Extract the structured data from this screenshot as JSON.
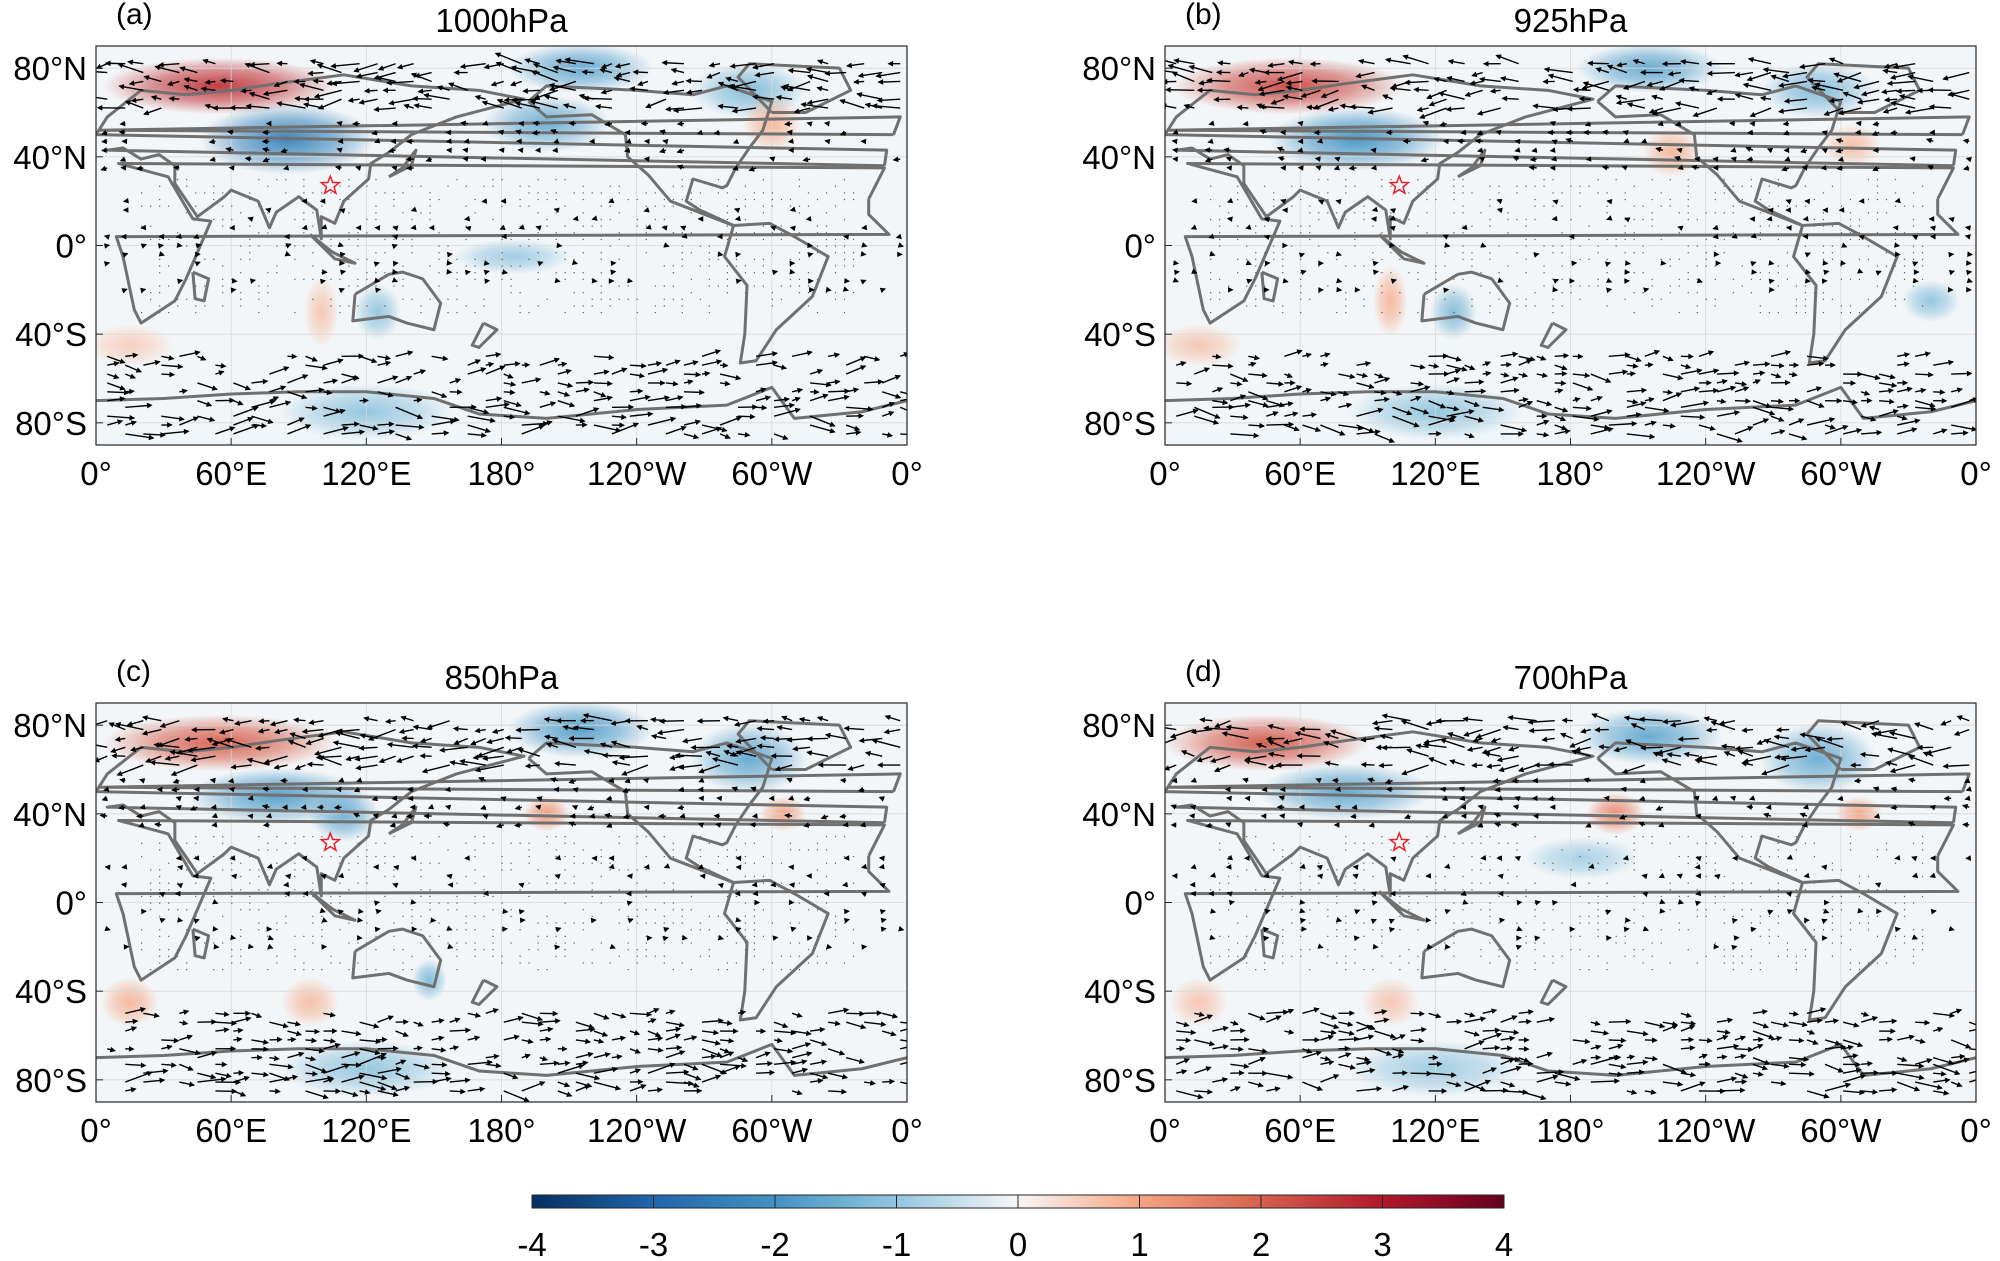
{
  "chart_data": {
    "type": "heatmap",
    "panels": [
      {
        "label": "(a)",
        "title": "1000hPa",
        "features": [
          {
            "lon": 55,
            "lat": 72,
            "value": 2.6,
            "rx": 40,
            "ry": 8
          },
          {
            "lon": 85,
            "lat": 48,
            "value": -2.4,
            "rx": 30,
            "ry": 10
          },
          {
            "lon": 215,
            "lat": 80,
            "value": -1.6,
            "rx": 25,
            "ry": 7
          },
          {
            "lon": 200,
            "lat": 55,
            "value": -1.5,
            "rx": 22,
            "ry": 8
          },
          {
            "lon": 290,
            "lat": 70,
            "value": -1.2,
            "rx": 20,
            "ry": 8
          },
          {
            "lon": 300,
            "lat": 55,
            "value": 0.8,
            "rx": 10,
            "ry": 8
          },
          {
            "lon": 185,
            "lat": -5,
            "value": -0.9,
            "rx": 20,
            "ry": 5
          },
          {
            "lon": 100,
            "lat": -30,
            "value": 0.6,
            "rx": 6,
            "ry": 10
          },
          {
            "lon": 125,
            "lat": -30,
            "value": -1.0,
            "rx": 8,
            "ry": 8
          },
          {
            "lon": 120,
            "lat": -75,
            "value": -1.0,
            "rx": 30,
            "ry": 8
          },
          {
            "lon": 15,
            "lat": -45,
            "value": 0.5,
            "rx": 15,
            "ry": 6
          }
        ]
      },
      {
        "label": "(b)",
        "title": "925hPa",
        "features": [
          {
            "lon": 55,
            "lat": 72,
            "value": 2.3,
            "rx": 40,
            "ry": 8
          },
          {
            "lon": 85,
            "lat": 48,
            "value": -2.0,
            "rx": 30,
            "ry": 9
          },
          {
            "lon": 215,
            "lat": 80,
            "value": -1.6,
            "rx": 25,
            "ry": 7
          },
          {
            "lon": 225,
            "lat": 42,
            "value": 0.8,
            "rx": 10,
            "ry": 7
          },
          {
            "lon": 290,
            "lat": 70,
            "value": -1.2,
            "rx": 20,
            "ry": 8
          },
          {
            "lon": 305,
            "lat": 45,
            "value": 0.7,
            "rx": 10,
            "ry": 6
          },
          {
            "lon": 100,
            "lat": -25,
            "value": 0.8,
            "rx": 6,
            "ry": 10
          },
          {
            "lon": 128,
            "lat": -30,
            "value": -1.2,
            "rx": 8,
            "ry": 8
          },
          {
            "lon": 340,
            "lat": -25,
            "value": -1.0,
            "rx": 10,
            "ry": 6
          },
          {
            "lon": 120,
            "lat": -75,
            "value": -1.0,
            "rx": 30,
            "ry": 8
          },
          {
            "lon": 15,
            "lat": -45,
            "value": 0.6,
            "rx": 15,
            "ry": 6
          }
        ]
      },
      {
        "label": "(c)",
        "title": "850hPa",
        "features": [
          {
            "lon": 55,
            "lat": 72,
            "value": 2.0,
            "rx": 40,
            "ry": 8
          },
          {
            "lon": 80,
            "lat": 48,
            "value": -1.8,
            "rx": 30,
            "ry": 8
          },
          {
            "lon": 110,
            "lat": 40,
            "value": -1.5,
            "rx": 12,
            "ry": 8
          },
          {
            "lon": 215,
            "lat": 78,
            "value": -1.8,
            "rx": 25,
            "ry": 8
          },
          {
            "lon": 200,
            "lat": 40,
            "value": 1.2,
            "rx": 8,
            "ry": 5
          },
          {
            "lon": 290,
            "lat": 65,
            "value": -1.6,
            "rx": 20,
            "ry": 10
          },
          {
            "lon": 305,
            "lat": 40,
            "value": 1.0,
            "rx": 8,
            "ry": 5
          },
          {
            "lon": 15,
            "lat": -45,
            "value": 0.8,
            "rx": 10,
            "ry": 7
          },
          {
            "lon": 95,
            "lat": -45,
            "value": 0.7,
            "rx": 10,
            "ry": 7
          },
          {
            "lon": 148,
            "lat": -35,
            "value": -1.2,
            "rx": 6,
            "ry": 6
          },
          {
            "lon": 120,
            "lat": -75,
            "value": -1.0,
            "rx": 30,
            "ry": 8
          }
        ]
      },
      {
        "label": "(d)",
        "title": "700hPa",
        "features": [
          {
            "lon": 45,
            "lat": 72,
            "value": 2.1,
            "rx": 35,
            "ry": 8
          },
          {
            "lon": 80,
            "lat": 50,
            "value": -1.6,
            "rx": 30,
            "ry": 8
          },
          {
            "lon": 215,
            "lat": 75,
            "value": -1.6,
            "rx": 25,
            "ry": 8
          },
          {
            "lon": 200,
            "lat": 40,
            "value": 1.4,
            "rx": 10,
            "ry": 6
          },
          {
            "lon": 290,
            "lat": 65,
            "value": -1.5,
            "rx": 20,
            "ry": 10
          },
          {
            "lon": 308,
            "lat": 40,
            "value": 1.0,
            "rx": 8,
            "ry": 5
          },
          {
            "lon": 185,
            "lat": 20,
            "value": -0.8,
            "rx": 20,
            "ry": 6
          },
          {
            "lon": 15,
            "lat": -45,
            "value": 0.6,
            "rx": 10,
            "ry": 7
          },
          {
            "lon": 100,
            "lat": -45,
            "value": 0.6,
            "rx": 10,
            "ry": 7
          },
          {
            "lon": 120,
            "lat": -75,
            "value": -0.9,
            "rx": 30,
            "ry": 8
          }
        ]
      }
    ],
    "xticks": [
      "0°",
      "60°E",
      "120°E",
      "180°",
      "120°W",
      "60°W",
      "0°"
    ],
    "xtick_values": [
      0,
      60,
      120,
      180,
      240,
      300,
      360
    ],
    "yticks": [
      "80°N",
      "40°N",
      "0°",
      "40°S",
      "80°S"
    ],
    "ytick_values": [
      80,
      40,
      0,
      -40,
      -80
    ],
    "xlim": [
      0,
      360
    ],
    "ylim": [
      -90,
      90
    ],
    "marker": {
      "symbol": "star",
      "lon": 104,
      "lat": 27,
      "color": "#e8202a"
    },
    "colorbar": {
      "range": [
        -4,
        4
      ],
      "ticks": [
        "-4",
        "-3",
        "-2",
        "-1",
        "0",
        "1",
        "2",
        "3",
        "4"
      ],
      "tick_values": [
        -4,
        -3,
        -2,
        -1,
        0,
        1,
        2,
        3,
        4
      ],
      "colormap": "RdBu_r",
      "colors": [
        "#053061",
        "#2166ac",
        "#4393c3",
        "#92c5de",
        "#f7f7f7",
        "#f4a582",
        "#d6604d",
        "#b2182b",
        "#67001f"
      ],
      "orientation": "horizontal"
    },
    "coastline_color": "#707070",
    "vector_color": "#000000",
    "grid": true
  }
}
